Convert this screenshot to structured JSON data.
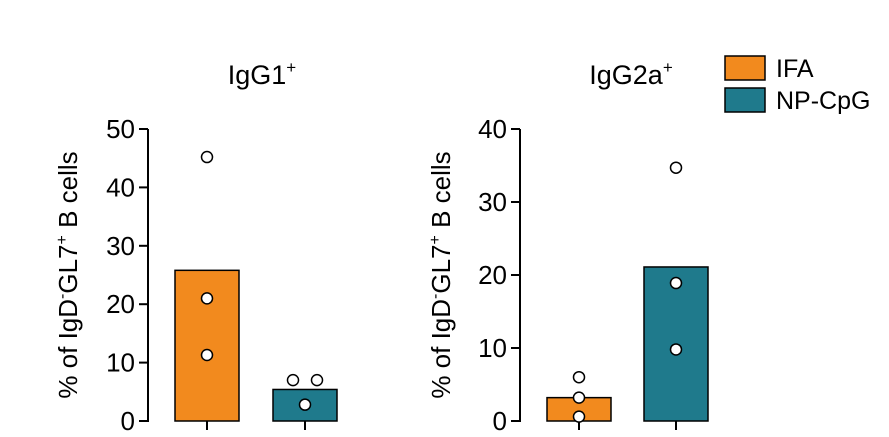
{
  "legend": [
    {
      "label": "IFA",
      "color": "#F28A1E"
    },
    {
      "label": "NP-CpG",
      "color": "#1F7A8C"
    }
  ],
  "chart_data": [
    {
      "type": "bar",
      "title_main": "IgG1",
      "title_sup": "+",
      "ylabel_parts": [
        "% of IgD",
        "-",
        "GL7",
        "+",
        " B cells"
      ],
      "ylim": [
        0,
        50
      ],
      "ticks": [
        "0",
        "10",
        "20",
        "30",
        "40",
        "50"
      ],
      "categories": [
        "IFA",
        "NP-CpG"
      ],
      "values": [
        25.8,
        5.4
      ],
      "points": [
        [
          45.2,
          21.0,
          11.3
        ],
        [
          7.0,
          7.0,
          2.8
        ]
      ]
    },
    {
      "type": "bar",
      "title_main": "IgG2a",
      "title_sup": "+",
      "ylabel_parts": [
        "% of IgD",
        "-",
        "GL7",
        "+",
        " B cells"
      ],
      "ylim": [
        0,
        40
      ],
      "ticks": [
        "0",
        "10",
        "20",
        "30",
        "40"
      ],
      "categories": [
        "IFA",
        "NP-CpG"
      ],
      "values": [
        3.2,
        21.1
      ],
      "points": [
        [
          6.0,
          3.2,
          0.6
        ],
        [
          34.7,
          18.9,
          9.8
        ]
      ]
    }
  ]
}
